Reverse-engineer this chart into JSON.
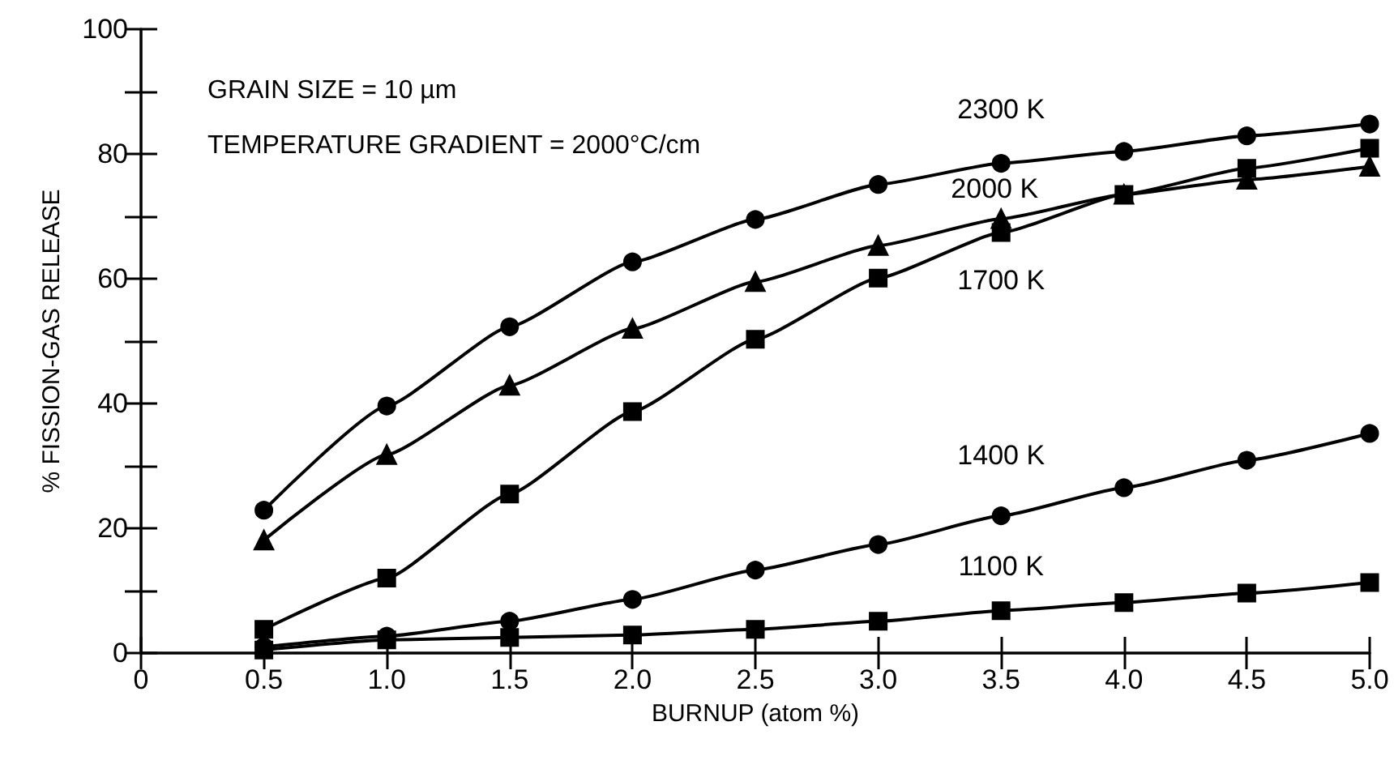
{
  "chart_data": {
    "type": "line",
    "xlabel": "BURNUP (atom %)",
    "ylabel": "% FISSION-GAS RELEASE",
    "annotations": [
      "GRAIN SIZE = 10 µm",
      "TEMPERATURE GRADIENT = 2000°C/cm"
    ],
    "x": [
      0.5,
      1.0,
      1.5,
      2.0,
      2.5,
      3.0,
      3.5,
      4.0,
      4.5,
      5.0
    ],
    "series": [
      {
        "name": "2300 K",
        "color": "#000000",
        "marker": "circle",
        "values": [
          22.9,
          39.6,
          52.3,
          62.7,
          69.5,
          75.1,
          78.5,
          80.4,
          82.9,
          84.8
        ]
      },
      {
        "name": "2000 K",
        "color": "#000000",
        "marker": "triangle",
        "values": [
          18.1,
          31.8,
          42.9,
          52.0,
          59.5,
          65.3,
          69.6,
          73.5,
          75.9,
          78.0
        ]
      },
      {
        "name": "1700 K",
        "color": "#000000",
        "marker": "square",
        "values": [
          3.8,
          12.0,
          25.5,
          38.7,
          50.3,
          60.1,
          67.4,
          73.5,
          77.7,
          80.9
        ]
      },
      {
        "name": "1400 K",
        "color": "#000000",
        "marker": "circle",
        "values": [
          1.0,
          2.7,
          5.1,
          8.6,
          13.3,
          17.4,
          22.0,
          26.5,
          30.9,
          35.2
        ]
      },
      {
        "name": "1100 K",
        "color": "#000000",
        "marker": "square",
        "values": [
          0.5,
          2.1,
          2.5,
          2.9,
          3.8,
          5.1,
          6.8,
          8.1,
          9.6,
          11.3
        ]
      }
    ],
    "xlim": [
      0,
      5
    ],
    "xticks": [
      0,
      0.5,
      {
        "value": 1,
        "label": "1.0"
      },
      1.5,
      {
        "value": 2,
        "label": "2.0"
      },
      2.5,
      {
        "value": 3,
        "label": "3.0"
      },
      3.5,
      {
        "value": 4,
        "label": "4.0"
      },
      4.5,
      {
        "value": 5,
        "label": "5.0"
      }
    ],
    "ylim": [
      0,
      100
    ],
    "yticks": [
      0,
      {
        "value": 10,
        "label": null
      },
      20,
      {
        "value": 30,
        "label": null
      },
      40,
      {
        "value": 50,
        "label": null
      },
      60,
      {
        "value": 70,
        "label": null
      },
      80,
      {
        "value": 90,
        "label": null
      },
      100
    ],
    "grid": false,
    "legend": false,
    "line_style": "solid"
  }
}
